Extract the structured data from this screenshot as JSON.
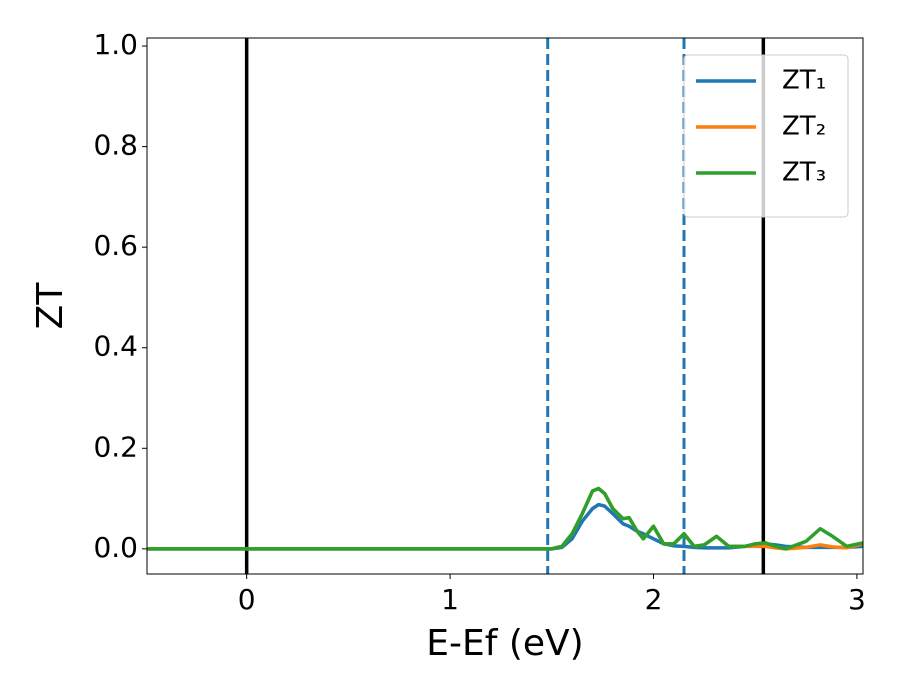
{
  "chart_data": {
    "type": "line",
    "x_label": "E-Ef (eV)",
    "y_label": "ZT",
    "x": [
      -0.49,
      1.4,
      1.5,
      1.55,
      1.6,
      1.65,
      1.7,
      1.73,
      1.76,
      1.8,
      1.85,
      1.88,
      1.92,
      1.95,
      2.0,
      2.05,
      2.1,
      2.15,
      2.2,
      2.25,
      2.31,
      2.37,
      2.45,
      2.5,
      2.55,
      2.6,
      2.65,
      2.75,
      2.82,
      2.88,
      2.95,
      3.03
    ],
    "series": [
      {
        "name": "ZT₁",
        "color": "#1f77b4",
        "values": [
          0,
          0,
          0,
          0.003,
          0.02,
          0.055,
          0.08,
          0.088,
          0.085,
          0.07,
          0.05,
          0.045,
          0.035,
          0.03,
          0.02,
          0.01,
          0.006,
          0.005,
          0.003,
          0.002,
          0.002,
          0.002,
          0.005,
          0.008,
          0.01,
          0.008,
          0.005,
          0.003,
          0.003,
          0.003,
          0.003,
          0.005
        ]
      },
      {
        "name": "ZT₂",
        "color": "#ff7f0e",
        "values": [
          0,
          0,
          0,
          0.005,
          0.03,
          0.07,
          0.115,
          0.12,
          0.11,
          0.08,
          0.06,
          0.062,
          0.035,
          0.02,
          0.045,
          0.01,
          0.01,
          0.03,
          0.005,
          0.008,
          0.025,
          0.005,
          0.005,
          0.005,
          0.005,
          0.002,
          0,
          0.003,
          0.008,
          0.004,
          0.002,
          0.01
        ]
      },
      {
        "name": "ZT₃",
        "color": "#2ca02c",
        "values": [
          0,
          0,
          0,
          0.005,
          0.03,
          0.07,
          0.115,
          0.12,
          0.11,
          0.08,
          0.06,
          0.062,
          0.035,
          0.02,
          0.045,
          0.01,
          0.01,
          0.03,
          0.005,
          0.008,
          0.025,
          0.005,
          0.005,
          0.01,
          0.012,
          0.005,
          0,
          0.015,
          0.04,
          0.025,
          0.005,
          0.012
        ]
      }
    ],
    "vlines": [
      {
        "x": 0,
        "color": "#000000",
        "style": "solid"
      },
      {
        "x": 2.54,
        "color": "#000000",
        "style": "solid"
      },
      {
        "x": 1.48,
        "color": "#1f77b4",
        "style": "dashed"
      },
      {
        "x": 2.15,
        "color": "#1f77b4",
        "style": "dashed"
      }
    ],
    "xlim": [
      -0.49,
      3.03
    ],
    "xticks": [
      0,
      1,
      2,
      3
    ],
    "ylim": [
      -0.05,
      1.016
    ],
    "yticks": [
      {
        "value": 0,
        "label": "0.0"
      },
      {
        "value": 0.2,
        "label": "0.2"
      },
      {
        "value": 0.4,
        "label": "0.4"
      },
      {
        "value": 0.6,
        "label": "0.6"
      },
      {
        "value": 0.8,
        "label": "0.8"
      },
      {
        "value": 1,
        "label": "1.0"
      }
    ],
    "legend": "upper right"
  }
}
